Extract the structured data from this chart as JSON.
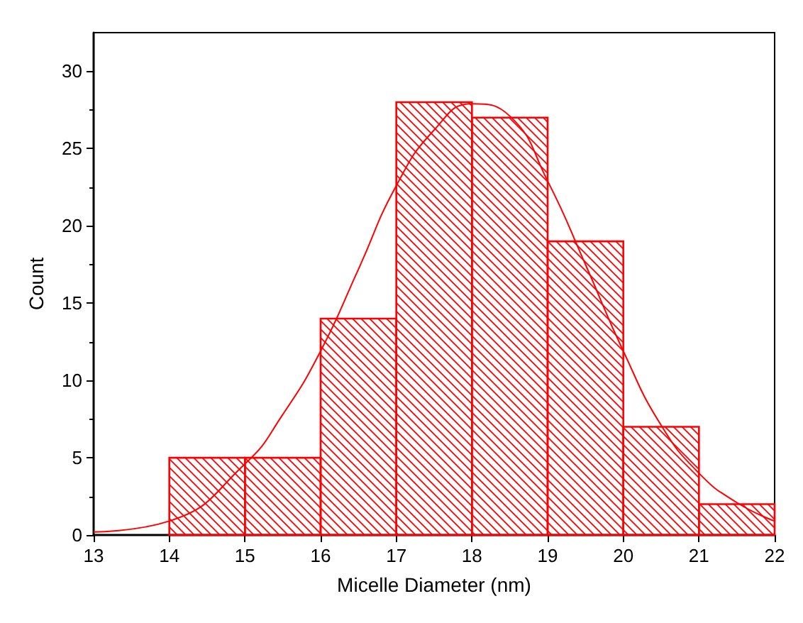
{
  "chart_data": {
    "type": "histogram",
    "xlabel": "Micelle Diameter (nm)",
    "ylabel": "Count",
    "bins": [
      14,
      15,
      16,
      17,
      18,
      19,
      20,
      21,
      22
    ],
    "values": [
      5,
      5,
      14,
      28,
      27,
      19,
      7,
      2
    ],
    "color": "#ff0000",
    "series": [
      {
        "type": "line",
        "color": "#ff0000",
        "x": [
          13,
          14,
          15,
          15.5,
          16,
          16.5,
          17,
          17.5,
          18,
          18.5,
          19,
          19.5,
          20,
          20.5,
          21,
          21.5,
          22
        ],
        "values": [
          0.2,
          0.9,
          4.6,
          7.8,
          11.9,
          17.2,
          22.6,
          26.2,
          27.9,
          27.1,
          22.9,
          17.5,
          11.9,
          7.1,
          4.0,
          2.1,
          0.9
        ]
      }
    ],
    "xlim": [
      13,
      22
    ],
    "xticks": [
      13,
      14,
      15,
      16,
      17,
      18,
      19,
      20,
      21,
      22
    ],
    "ylim": [
      0,
      32.5
    ],
    "yticks": [
      0,
      5,
      10,
      15,
      20,
      25,
      30
    ],
    "grid": false
  }
}
